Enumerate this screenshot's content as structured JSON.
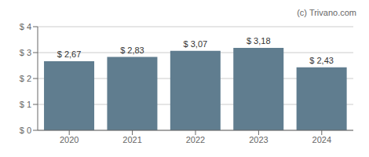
{
  "chart_data": {
    "type": "bar",
    "categories": [
      "2020",
      "2021",
      "2022",
      "2023",
      "2024"
    ],
    "values": [
      2.67,
      2.83,
      3.07,
      3.18,
      2.43
    ],
    "value_labels": [
      "$ 2,67",
      "$ 2,83",
      "$ 3,07",
      "$ 3,18",
      "$ 2,43"
    ],
    "data_labels": true,
    "color": "#607d8f",
    "ylim": [
      0,
      4
    ],
    "yticks": [
      {
        "value": 0,
        "label": "$ 0"
      },
      {
        "value": 1,
        "label": "$ 1"
      },
      {
        "value": 2,
        "label": "$ 2"
      },
      {
        "value": 3,
        "label": "$ 3"
      },
      {
        "value": 4,
        "label": "$ 4"
      }
    ],
    "grid": true,
    "annotations": [
      "(c) Trivano.com"
    ]
  }
}
